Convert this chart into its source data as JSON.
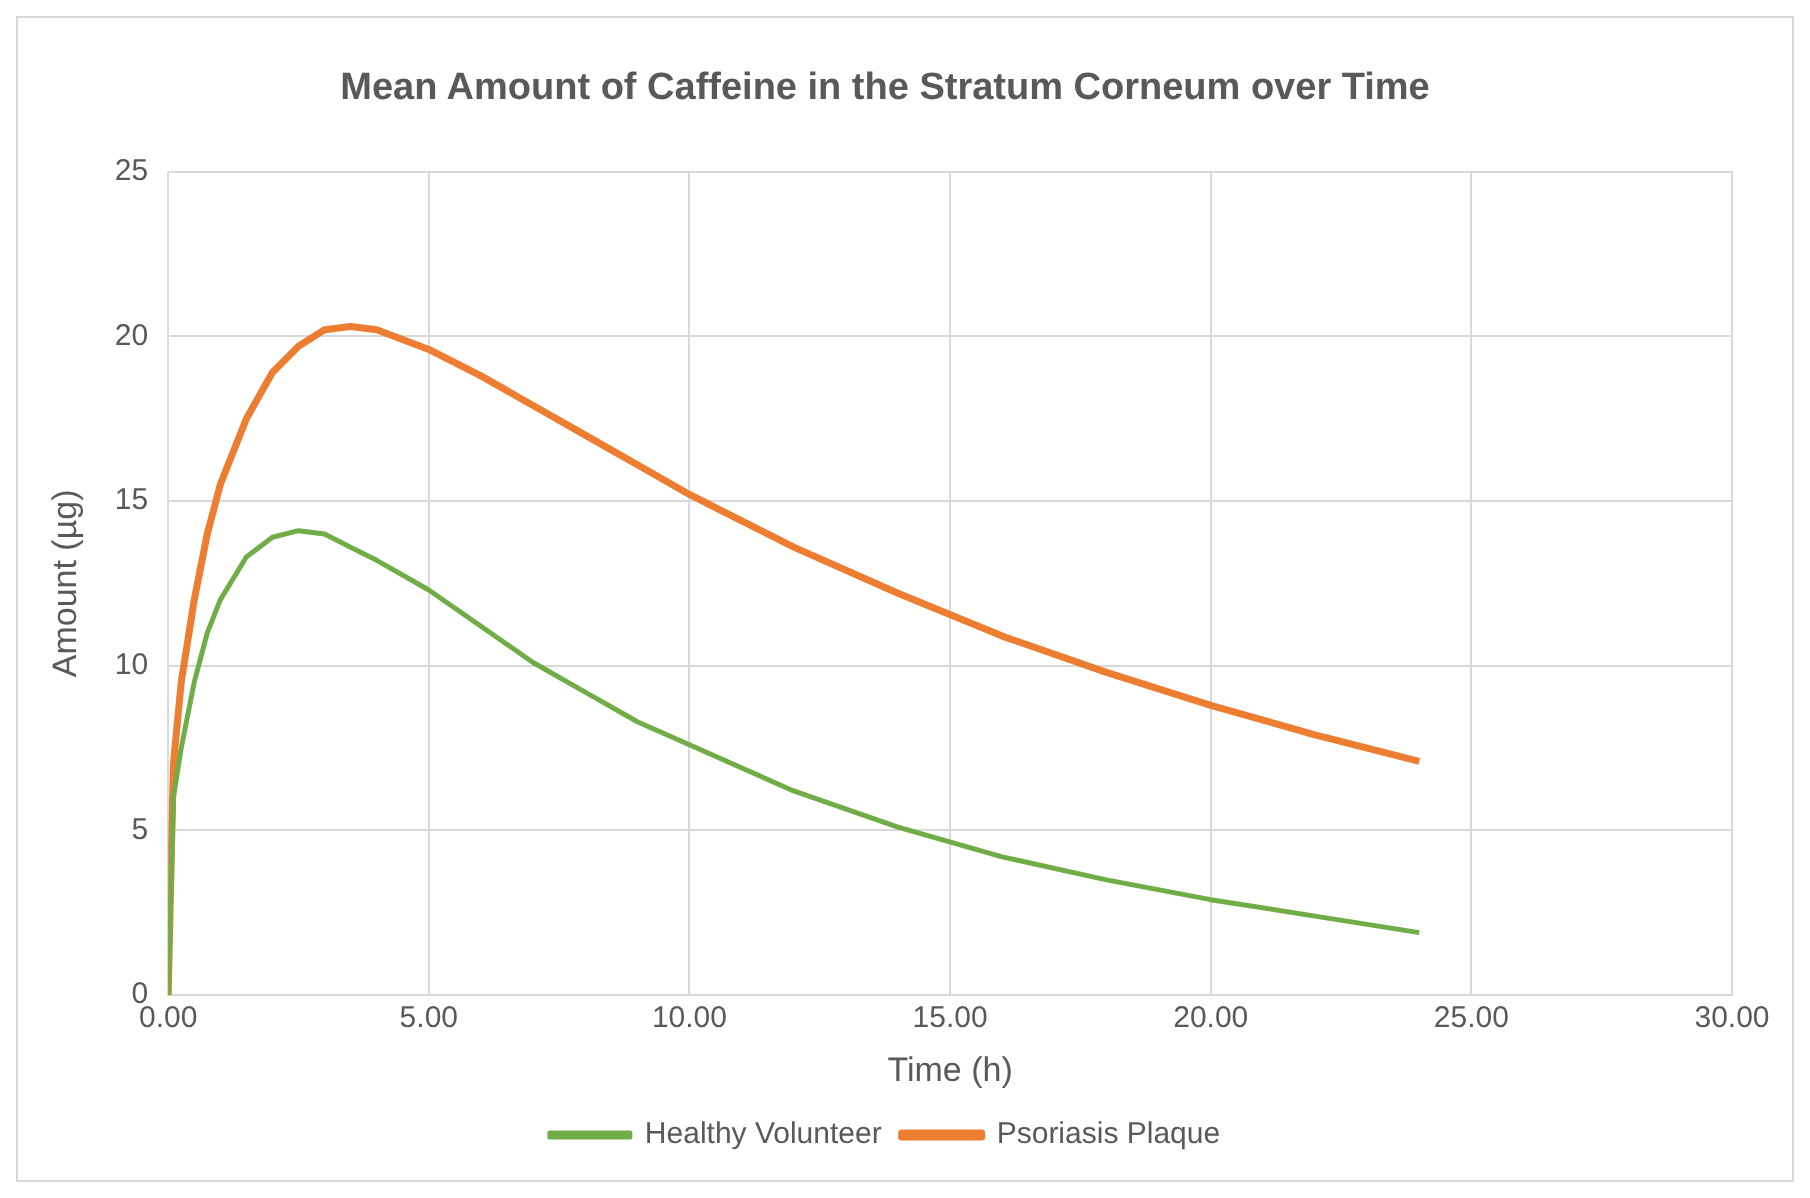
{
  "chart_data": {
    "type": "line",
    "title": "Mean Amount of Caffeine in the Stratum Corneum over Time",
    "xlabel": "Time (h)",
    "ylabel": "Amount (µg)",
    "x": [
      0,
      0.1,
      0.25,
      0.5,
      0.75,
      1,
      1.5,
      2,
      2.5,
      3,
      3.5,
      4,
      5,
      6,
      7,
      8,
      9,
      10,
      12,
      14,
      16,
      18,
      20,
      22,
      24
    ],
    "series": [
      {
        "name": "Healthy Volunteer",
        "color": "#70ad47",
        "values": [
          0,
          6,
          7.5,
          9.5,
          11,
          12,
          13.3,
          13.9,
          14.1,
          14,
          13.6,
          13.2,
          12.3,
          11.2,
          10.1,
          9.2,
          8.3,
          7.6,
          6.2,
          5.1,
          4.2,
          3.5,
          2.9,
          2.4,
          1.9
        ]
      },
      {
        "name": "Psoriasis Plaque",
        "color": "#ed7d31",
        "values": [
          0,
          7,
          9.5,
          12,
          14,
          15.5,
          17.5,
          18.9,
          19.7,
          20.2,
          20.3,
          20.2,
          19.6,
          18.8,
          17.9,
          17,
          16.1,
          15.2,
          13.6,
          12.2,
          10.9,
          9.8,
          8.8,
          7.9,
          7.1
        ]
      }
    ],
    "xlim": [
      0,
      30
    ],
    "xticks": [
      {
        "value": 0,
        "label": "0.00"
      },
      {
        "value": 5,
        "label": "5.00"
      },
      {
        "value": 10,
        "label": "10.00"
      },
      {
        "value": 15,
        "label": "15.00"
      },
      {
        "value": 20,
        "label": "20.00"
      },
      {
        "value": 25,
        "label": "25.00"
      },
      {
        "value": 30,
        "label": "30.00"
      }
    ],
    "ylim": [
      0,
      25
    ],
    "yticks": [
      0,
      5,
      10,
      15,
      20,
      25
    ],
    "grid": true,
    "legend": "bottom",
    "marker": "none",
    "line_style": "solid"
  }
}
